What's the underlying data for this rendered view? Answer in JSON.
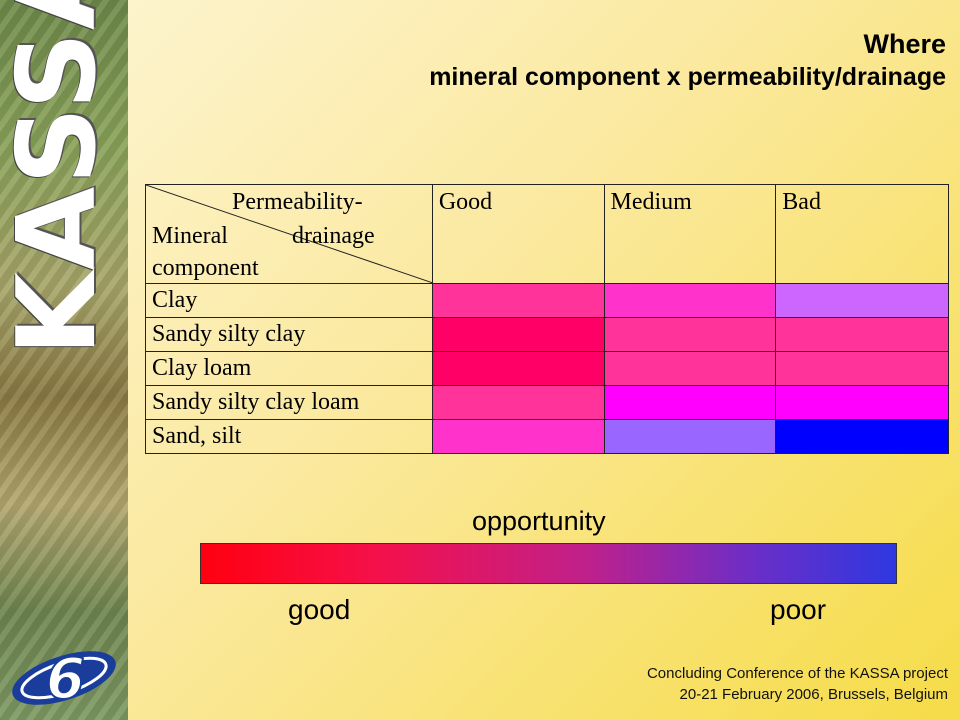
{
  "branding": {
    "logo_text": "KASSA",
    "fp_logo": "6"
  },
  "title": {
    "line1": "Where",
    "line2": "mineral component x permeability/drainage"
  },
  "table": {
    "header_corner": {
      "line1": "Permeability-",
      "line2a": "Mineral",
      "line2b": "drainage",
      "line3": "component"
    },
    "columns": [
      "Good",
      "Medium",
      "Bad"
    ],
    "rows": [
      {
        "label": "Clay",
        "colors": [
          "#ff3399",
          "#ff33cc",
          "#cc66ff"
        ]
      },
      {
        "label": "Sandy silty clay",
        "colors": [
          "#ff0066",
          "#ff3399",
          "#ff3399"
        ]
      },
      {
        "label": "Clay loam",
        "colors": [
          "#ff0066",
          "#ff3399",
          "#ff3399"
        ]
      },
      {
        "label": "Sandy silty clay loam",
        "colors": [
          "#ff3399",
          "#ff00ff",
          "#ff00ff"
        ]
      },
      {
        "label": "Sand, silt",
        "colors": [
          "#ff33cc",
          "#9966ff",
          "#0000ff"
        ]
      }
    ]
  },
  "legend": {
    "title": "opportunity",
    "low_label": "good",
    "high_label": "poor"
  },
  "footer": {
    "line1": "Concluding Conference of the KASSA project",
    "line2": "20-21 February 2006, Brussels, Belgium"
  }
}
